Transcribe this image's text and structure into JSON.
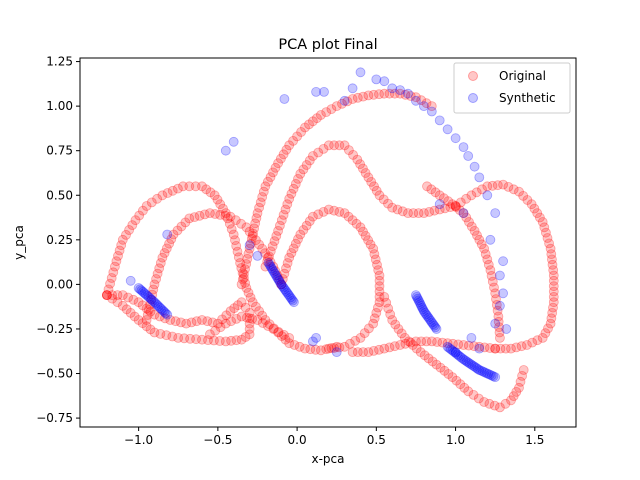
{
  "chart_data": {
    "type": "scatter",
    "title": "PCA plot Final",
    "xlabel": "x-pca",
    "ylabel": "y_pca",
    "xlim": [
      -1.37,
      1.76
    ],
    "ylim": [
      -0.8,
      1.27
    ],
    "xticks": [
      -1.0,
      -0.5,
      0.0,
      0.5,
      1.0,
      1.5
    ],
    "xtick_labels": [
      "−1.0",
      "−0.5",
      "0.0",
      "0.5",
      "1.0",
      "1.5"
    ],
    "yticks": [
      -0.75,
      -0.5,
      -0.25,
      0.0,
      0.25,
      0.5,
      0.75,
      1.0,
      1.25
    ],
    "ytick_labels": [
      "−0.75",
      "−0.50",
      "−0.25",
      "0.00",
      "0.25",
      "0.50",
      "0.75",
      "1.00",
      "1.25"
    ],
    "grid": false,
    "legend_position": "upper right",
    "series": [
      {
        "name": "Original",
        "color": "#ff0000",
        "alpha": 0.22,
        "loops": [
          [
            [
              -1.2,
              -0.06
            ],
            [
              -1.1,
              -0.06
            ],
            [
              -1.0,
              -0.1
            ],
            [
              -0.9,
              -0.17
            ],
            [
              -0.8,
              -0.2
            ],
            [
              -0.7,
              -0.22
            ],
            [
              -0.6,
              -0.2
            ],
            [
              -0.5,
              -0.22
            ],
            [
              -0.42,
              -0.15
            ],
            [
              -0.35,
              -0.1
            ],
            [
              -0.3,
              -0.16
            ],
            [
              -0.3,
              -0.28
            ],
            [
              -0.35,
              -0.31
            ],
            [
              -0.45,
              -0.32
            ],
            [
              -0.6,
              -0.31
            ],
            [
              -0.75,
              -0.3
            ],
            [
              -0.9,
              -0.27
            ],
            [
              -1.0,
              -0.2
            ],
            [
              -1.1,
              -0.12
            ],
            [
              -1.2,
              -0.06
            ]
          ],
          [
            [
              -1.2,
              -0.06
            ],
            [
              -1.15,
              0.1
            ],
            [
              -1.1,
              0.25
            ],
            [
              -1.02,
              0.36
            ],
            [
              -0.95,
              0.44
            ],
            [
              -0.85,
              0.5
            ],
            [
              -0.72,
              0.55
            ],
            [
              -0.6,
              0.55
            ],
            [
              -0.52,
              0.5
            ],
            [
              -0.45,
              0.4
            ],
            [
              -0.4,
              0.28
            ],
            [
              -0.36,
              0.12
            ],
            [
              -0.32,
              -0.02
            ],
            [
              -0.28,
              -0.1
            ],
            [
              -0.2,
              -0.2
            ],
            [
              -0.12,
              -0.27
            ],
            [
              -0.05,
              -0.33
            ],
            [
              0.05,
              -0.36
            ],
            [
              0.15,
              -0.37
            ],
            [
              0.25,
              -0.35
            ]
          ],
          [
            [
              -0.95,
              -0.2
            ],
            [
              -0.9,
              0.0
            ],
            [
              -0.85,
              0.15
            ],
            [
              -0.78,
              0.28
            ],
            [
              -0.68,
              0.37
            ],
            [
              -0.55,
              0.4
            ],
            [
              -0.42,
              0.38
            ],
            [
              -0.32,
              0.32
            ],
            [
              -0.22,
              0.2
            ],
            [
              -0.15,
              0.1
            ],
            [
              -0.1,
              0.0
            ]
          ],
          [
            [
              -0.1,
              0.0
            ],
            [
              -0.05,
              0.15
            ],
            [
              0.02,
              0.28
            ],
            [
              0.1,
              0.38
            ],
            [
              0.2,
              0.42
            ],
            [
              0.3,
              0.4
            ],
            [
              0.4,
              0.32
            ],
            [
              0.48,
              0.2
            ],
            [
              0.52,
              0.05
            ],
            [
              0.52,
              -0.1
            ],
            [
              0.48,
              -0.22
            ],
            [
              0.4,
              -0.3
            ],
            [
              0.3,
              -0.35
            ],
            [
              0.2,
              -0.36
            ]
          ],
          [
            [
              -0.2,
              0.1
            ],
            [
              -0.12,
              0.3
            ],
            [
              -0.05,
              0.48
            ],
            [
              0.02,
              0.62
            ],
            [
              0.1,
              0.72
            ],
            [
              0.2,
              0.78
            ],
            [
              0.3,
              0.78
            ],
            [
              0.38,
              0.7
            ],
            [
              0.45,
              0.6
            ],
            [
              0.52,
              0.5
            ],
            [
              0.6,
              0.43
            ],
            [
              0.7,
              0.4
            ],
            [
              0.8,
              0.4
            ],
            [
              0.9,
              0.42
            ],
            [
              1.0,
              0.44
            ]
          ],
          [
            [
              -0.35,
              0.0
            ],
            [
              -0.3,
              0.2
            ],
            [
              -0.25,
              0.4
            ],
            [
              -0.2,
              0.55
            ],
            [
              -0.12,
              0.68
            ],
            [
              -0.05,
              0.78
            ],
            [
              0.05,
              0.88
            ],
            [
              0.15,
              0.95
            ],
            [
              0.25,
              1.0
            ],
            [
              0.35,
              1.04
            ],
            [
              0.45,
              1.06
            ],
            [
              0.55,
              1.07
            ],
            [
              0.65,
              1.07
            ],
            [
              0.75,
              1.05
            ],
            [
              0.85,
              1.0
            ]
          ],
          [
            [
              1.0,
              0.44
            ],
            [
              1.1,
              0.5
            ],
            [
              1.2,
              0.55
            ],
            [
              1.3,
              0.56
            ],
            [
              1.4,
              0.52
            ],
            [
              1.48,
              0.45
            ],
            [
              1.55,
              0.35
            ],
            [
              1.6,
              0.2
            ],
            [
              1.62,
              0.05
            ],
            [
              1.62,
              -0.1
            ],
            [
              1.6,
              -0.22
            ],
            [
              1.55,
              -0.3
            ],
            [
              1.45,
              -0.34
            ],
            [
              1.35,
              -0.36
            ],
            [
              1.25,
              -0.36
            ]
          ],
          [
            [
              1.25,
              -0.36
            ],
            [
              1.15,
              -0.35
            ],
            [
              1.05,
              -0.34
            ],
            [
              0.95,
              -0.33
            ],
            [
              0.85,
              -0.32
            ],
            [
              0.75,
              -0.32
            ],
            [
              0.65,
              -0.34
            ],
            [
              0.55,
              -0.36
            ],
            [
              0.45,
              -0.38
            ],
            [
              0.35,
              -0.38
            ]
          ],
          [
            [
              0.55,
              -0.07
            ],
            [
              0.6,
              -0.2
            ],
            [
              0.68,
              -0.3
            ],
            [
              0.78,
              -0.38
            ],
            [
              0.88,
              -0.45
            ],
            [
              0.98,
              -0.52
            ],
            [
              1.08,
              -0.6
            ],
            [
              1.18,
              -0.66
            ],
            [
              1.28,
              -0.69
            ],
            [
              1.35,
              -0.65
            ],
            [
              1.4,
              -0.58
            ],
            [
              1.43,
              -0.48
            ]
          ],
          [
            [
              0.82,
              0.55
            ],
            [
              0.9,
              0.5
            ],
            [
              0.98,
              0.45
            ],
            [
              1.05,
              0.4
            ],
            [
              1.12,
              0.3
            ],
            [
              1.18,
              0.2
            ],
            [
              1.22,
              0.08
            ],
            [
              1.25,
              -0.05
            ],
            [
              1.27,
              -0.18
            ],
            [
              1.28,
              -0.3
            ]
          ],
          [
            [
              -0.55,
              -0.28
            ],
            [
              -0.45,
              -0.22
            ],
            [
              -0.35,
              -0.18
            ],
            [
              -0.25,
              -0.2
            ],
            [
              -0.15,
              -0.25
            ],
            [
              -0.05,
              -0.3
            ]
          ]
        ]
      },
      {
        "name": "Synthetic",
        "color": "#0000ff",
        "alpha": 0.22,
        "segments": [
          [
            [
              -1.0,
              -0.02
            ],
            [
              -0.9,
              -0.1
            ],
            [
              -0.82,
              -0.17
            ]
          ],
          [
            [
              -0.18,
              0.12
            ],
            [
              -0.1,
              0.0
            ],
            [
              -0.02,
              -0.1
            ]
          ],
          [
            [
              0.75,
              -0.06
            ],
            [
              0.8,
              -0.15
            ],
            [
              0.88,
              -0.25
            ]
          ],
          [
            [
              0.95,
              -0.35
            ],
            [
              1.05,
              -0.42
            ],
            [
              1.15,
              -0.48
            ],
            [
              1.25,
              -0.52
            ]
          ]
        ],
        "scatter": [
          [
            -1.05,
            0.02
          ],
          [
            -0.82,
            0.28
          ],
          [
            -0.45,
            0.75
          ],
          [
            -0.4,
            0.8
          ],
          [
            -0.3,
            0.22
          ],
          [
            -0.25,
            0.16
          ],
          [
            -0.08,
            1.04
          ],
          [
            0.12,
            1.08
          ],
          [
            0.17,
            1.08
          ],
          [
            0.3,
            1.03
          ],
          [
            0.35,
            1.1
          ],
          [
            0.4,
            1.19
          ],
          [
            0.5,
            1.15
          ],
          [
            0.55,
            1.14
          ],
          [
            0.6,
            1.1
          ],
          [
            0.65,
            1.09
          ],
          [
            0.7,
            1.07
          ],
          [
            0.75,
            1.03
          ],
          [
            0.8,
            1.0
          ],
          [
            0.85,
            0.97
          ],
          [
            0.9,
            0.92
          ],
          [
            0.95,
            0.87
          ],
          [
            1.0,
            0.82
          ],
          [
            1.05,
            0.77
          ],
          [
            1.08,
            0.72
          ],
          [
            1.12,
            0.66
          ],
          [
            1.15,
            0.6
          ],
          [
            1.2,
            0.5
          ],
          [
            1.25,
            0.4
          ],
          [
            1.22,
            0.25
          ],
          [
            1.3,
            0.13
          ],
          [
            1.28,
            0.05
          ],
          [
            1.3,
            -0.05
          ],
          [
            1.28,
            -0.12
          ],
          [
            1.25,
            -0.22
          ],
          [
            1.32,
            -0.25
          ],
          [
            0.9,
            0.45
          ],
          [
            1.05,
            0.4
          ],
          [
            0.1,
            -0.32
          ],
          [
            0.12,
            -0.3
          ],
          [
            0.25,
            -0.38
          ],
          [
            1.1,
            -0.3
          ],
          [
            1.15,
            -0.36
          ],
          [
            1.0,
            -0.38
          ]
        ]
      }
    ]
  }
}
